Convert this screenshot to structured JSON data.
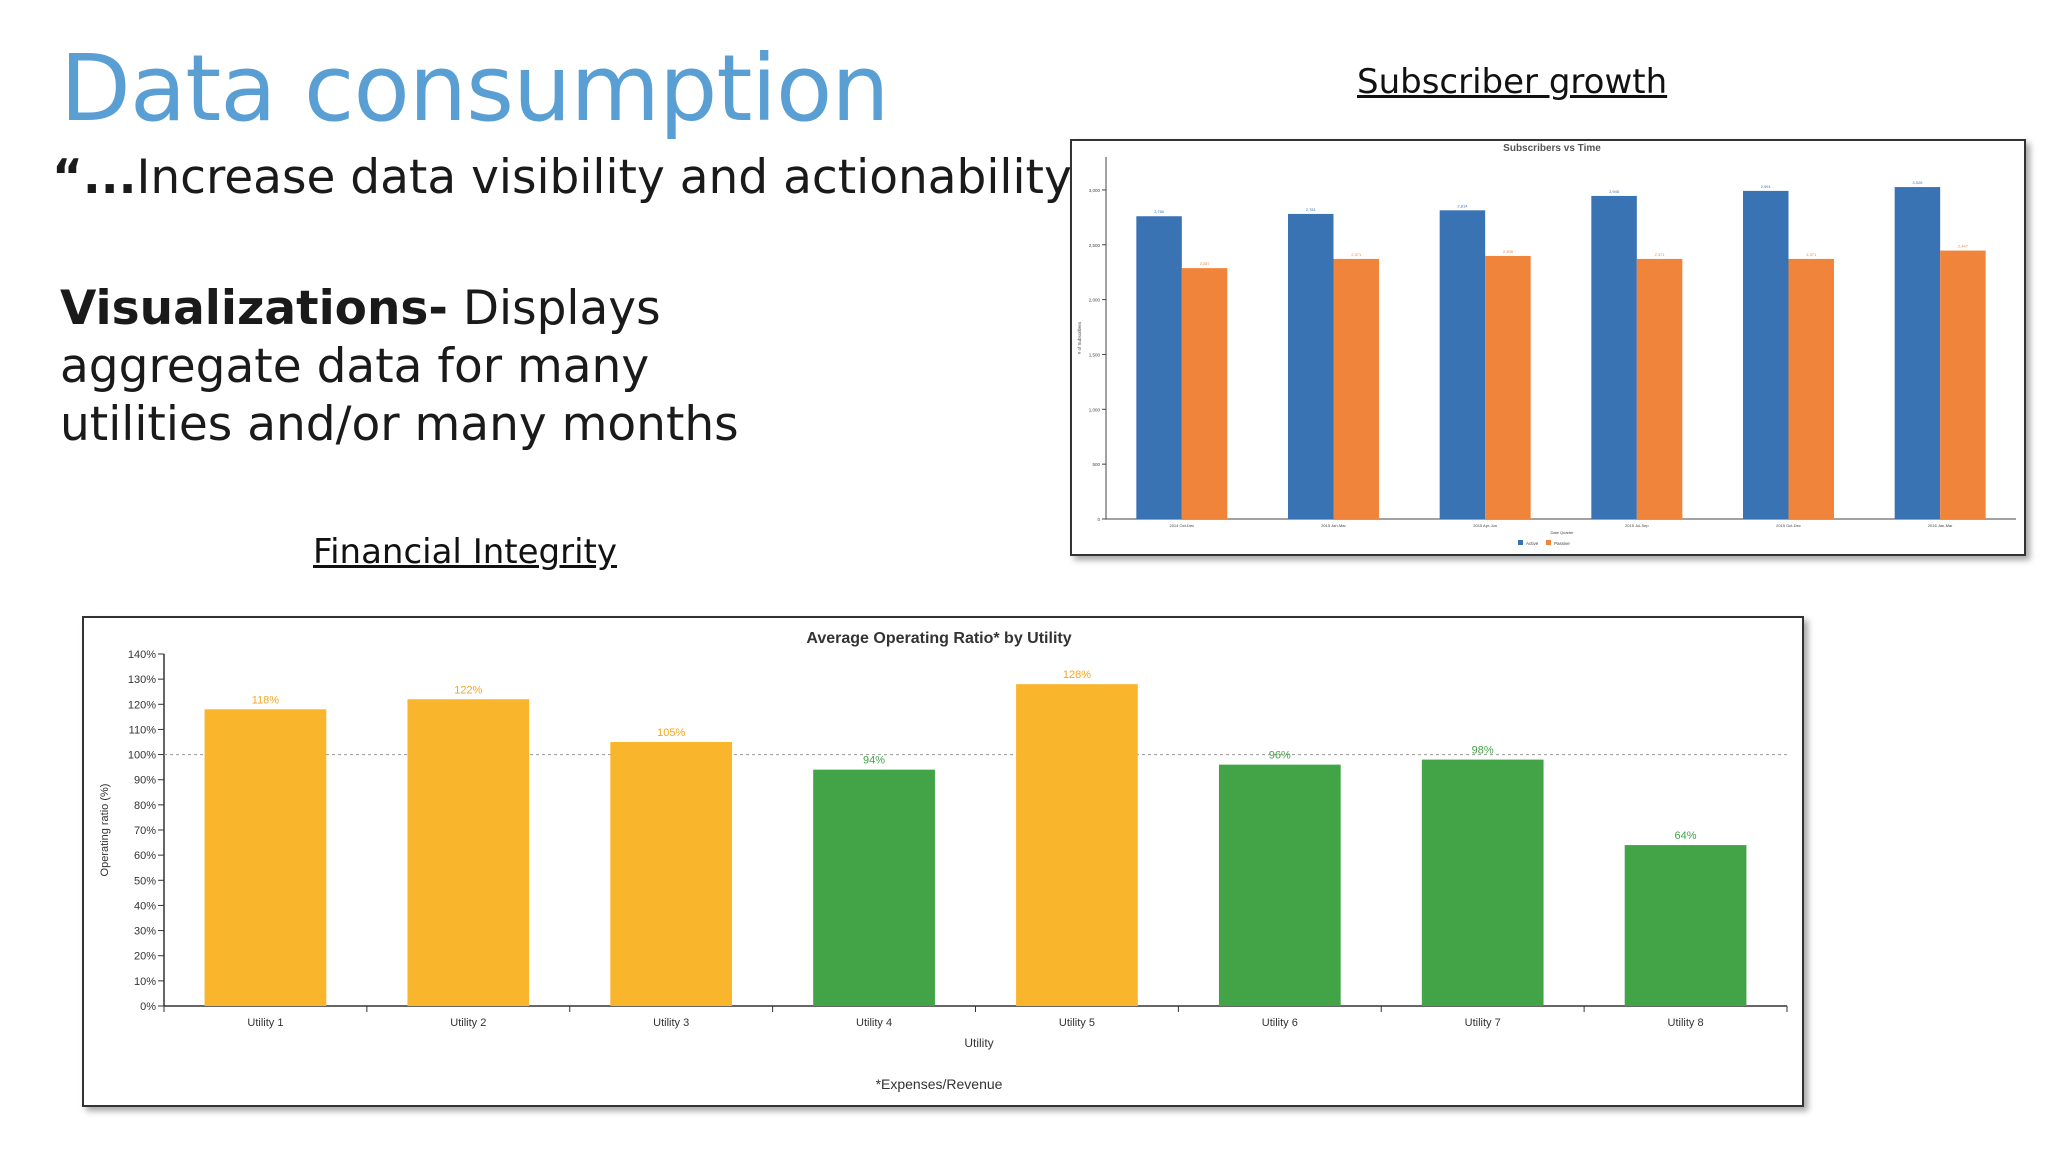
{
  "slide": {
    "title": "Data consumption",
    "quote_prefix": "“...",
    "quote_text": "Increase data visibility and actionability",
    "quote_suffix": "”",
    "viz_bold": "Visualizations-",
    "viz_text": " Displays aggregate data for many utilities and/or many months",
    "subscriber_caption": "Subscriber growth",
    "financial_caption": "Financial Integrity"
  },
  "chart_data": [
    {
      "type": "bar",
      "title": "Average Operating Ratio* by Utility",
      "xlabel": "Utility",
      "ylabel": "Operating ratio (%)",
      "footnote": "*Expenses/Revenue",
      "categories": [
        "Utility 1",
        "Utility 2",
        "Utility 3",
        "Utility 4",
        "Utility 5",
        "Utility 6",
        "Utility 7",
        "Utility 8"
      ],
      "values": [
        118,
        122,
        105,
        94,
        128,
        96,
        98,
        64
      ],
      "value_labels": [
        "118%",
        "122%",
        "105%",
        "94%",
        "128%",
        "96%",
        "98%",
        "64%"
      ],
      "ylim": [
        0,
        140
      ],
      "yticks": [
        0,
        10,
        20,
        30,
        40,
        50,
        60,
        70,
        80,
        90,
        100,
        110,
        120,
        130,
        140
      ],
      "ytick_labels": [
        "0%",
        "10%",
        "20%",
        "30%",
        "40%",
        "50%",
        "60%",
        "70%",
        "80%",
        "90%",
        "100%",
        "110%",
        "120%",
        "130%",
        "140%"
      ],
      "reference_line": 100,
      "colors": {
        "above": "#f9b52c",
        "below": "#43a447",
        "above_label": "#f5a623",
        "below_label": "#43a447"
      },
      "grid": false
    },
    {
      "type": "bar",
      "title": "Subscribers vs Time",
      "xlabel": "Date Quarter",
      "ylabel": "# of Subscribers",
      "categories": [
        "2014 Oct-Dec",
        "2015 Jan-Mar",
        "2015 Apr-Jun",
        "2015 Jul-Sep",
        "2015 Oct-Dec",
        "2016 Jan-Mar"
      ],
      "series": [
        {
          "name": "Active",
          "color": "#3a73b3",
          "values": [
            2760,
            2781,
            2814,
            2945,
            2991,
            3026
          ]
        },
        {
          "name": "Passive",
          "color": "#f0843a",
          "values": [
            2287,
            2371,
            2398,
            2371,
            2371,
            2447
          ]
        }
      ],
      "ylim": [
        0,
        3300
      ],
      "yticks": [
        0,
        500,
        1000,
        1500,
        2000,
        2500,
        3000
      ],
      "ytick_labels": [
        "0",
        "500",
        "1,000",
        "1,500",
        "2,000",
        "2,500",
        "3,000"
      ],
      "legend": "bottom-center",
      "grid": false
    }
  ]
}
